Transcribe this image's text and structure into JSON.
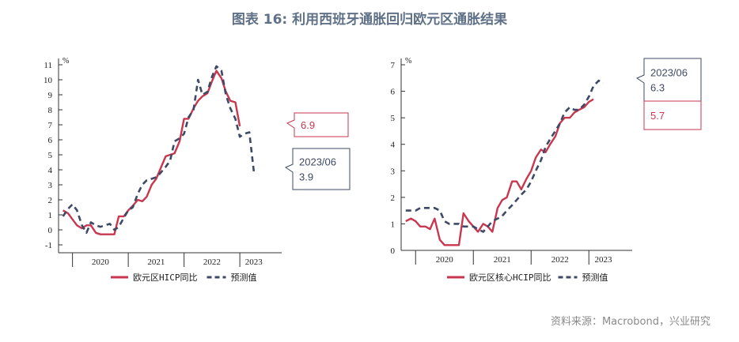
{
  "title": "图表 16: 利用西班牙通胀回归欧元区通胀结果",
  "source": "资料来源：Macrobond，兴业研究",
  "colors": {
    "actual": "#c8374f",
    "forecast": "#3e4a65",
    "title": "#5f7187"
  },
  "chart_data": [
    {
      "type": "line",
      "unit": "%",
      "ylim": [
        -1,
        11
      ],
      "yticks": [
        -1,
        0,
        1,
        2,
        3,
        4,
        5,
        6,
        7,
        8,
        9,
        10,
        11
      ],
      "x_range": [
        2019.75,
        2023.75
      ],
      "x_ticks": [
        2020.0,
        2021.0,
        2022.0,
        2023.0
      ],
      "x_labels": [
        {
          "label": "2020",
          "x": 2020.5
        },
        {
          "label": "2021",
          "x": 2021.5
        },
        {
          "label": "2022",
          "x": 2022.5
        },
        {
          "label": "2023",
          "x": 2023.25
        }
      ],
      "legend": [
        "欧元区HICP同比",
        "预测值"
      ],
      "series": [
        {
          "name": "欧元区HICP同比",
          "style": "solid",
          "points": [
            [
              2019.83,
              1.3
            ],
            [
              2019.92,
              1.1
            ],
            [
              2020.0,
              0.7
            ],
            [
              2020.08,
              0.3
            ],
            [
              2020.17,
              0.1
            ],
            [
              2020.25,
              0.3
            ],
            [
              2020.33,
              0.3
            ],
            [
              2020.42,
              -0.2
            ],
            [
              2020.5,
              -0.3
            ],
            [
              2020.58,
              -0.3
            ],
            [
              2020.67,
              -0.3
            ],
            [
              2020.75,
              -0.3
            ],
            [
              2020.83,
              0.9
            ],
            [
              2020.92,
              0.9
            ],
            [
              2021.0,
              1.3
            ],
            [
              2021.08,
              1.6
            ],
            [
              2021.17,
              2.0
            ],
            [
              2021.25,
              1.9
            ],
            [
              2021.33,
              2.2
            ],
            [
              2021.42,
              3.0
            ],
            [
              2021.5,
              3.4
            ],
            [
              2021.58,
              4.1
            ],
            [
              2021.67,
              4.9
            ],
            [
              2021.75,
              5.0
            ],
            [
              2021.83,
              5.1
            ],
            [
              2021.92,
              5.9
            ],
            [
              2022.0,
              7.4
            ],
            [
              2022.08,
              7.4
            ],
            [
              2022.17,
              8.1
            ],
            [
              2022.25,
              8.6
            ],
            [
              2022.33,
              8.9
            ],
            [
              2022.42,
              9.1
            ],
            [
              2022.5,
              9.9
            ],
            [
              2022.58,
              10.6
            ],
            [
              2022.67,
              10.1
            ],
            [
              2022.75,
              9.2
            ],
            [
              2022.83,
              8.6
            ],
            [
              2022.92,
              8.5
            ],
            [
              2023.0,
              6.9
            ]
          ]
        },
        {
          "name": "预测值",
          "style": "dashed",
          "points": [
            [
              2019.83,
              0.9
            ],
            [
              2019.92,
              1.4
            ],
            [
              2020.0,
              1.7
            ],
            [
              2020.08,
              1.3
            ],
            [
              2020.17,
              0.3
            ],
            [
              2020.25,
              -0.2
            ],
            [
              2020.33,
              0.5
            ],
            [
              2020.42,
              0.3
            ],
            [
              2020.5,
              0.2
            ],
            [
              2020.58,
              0.3
            ],
            [
              2020.67,
              0.4
            ],
            [
              2020.75,
              0.0
            ],
            [
              2020.83,
              0.2
            ],
            [
              2020.92,
              0.8
            ],
            [
              2021.0,
              1.3
            ],
            [
              2021.08,
              1.5
            ],
            [
              2021.17,
              2.4
            ],
            [
              2021.25,
              3.0
            ],
            [
              2021.33,
              3.3
            ],
            [
              2021.42,
              3.4
            ],
            [
              2021.5,
              3.5
            ],
            [
              2021.58,
              3.8
            ],
            [
              2021.67,
              4.2
            ],
            [
              2021.75,
              4.6
            ],
            [
              2021.83,
              5.9
            ],
            [
              2021.92,
              6.1
            ],
            [
              2022.0,
              6.4
            ],
            [
              2022.08,
              7.5
            ],
            [
              2022.17,
              8.0
            ],
            [
              2022.25,
              10.0
            ],
            [
              2022.33,
              9.0
            ],
            [
              2022.42,
              9.2
            ],
            [
              2022.5,
              10.2
            ],
            [
              2022.58,
              10.9
            ],
            [
              2022.67,
              10.6
            ],
            [
              2022.75,
              9.0
            ],
            [
              2022.83,
              8.1
            ],
            [
              2022.92,
              7.4
            ],
            [
              2023.0,
              6.2
            ],
            [
              2023.08,
              6.4
            ],
            [
              2023.17,
              6.5
            ],
            [
              2023.25,
              3.9
            ]
          ]
        }
      ],
      "callouts": [
        {
          "lines": [
            "6.9"
          ],
          "series": "actual"
        },
        {
          "lines": [
            "2023/06",
            "3.9"
          ],
          "series": "forecast"
        }
      ]
    },
    {
      "type": "line",
      "unit": "%",
      "ylim": [
        0,
        7
      ],
      "yticks": [
        0,
        1,
        2,
        3,
        4,
        5,
        6,
        7
      ],
      "x_range": [
        2019.75,
        2023.75
      ],
      "x_ticks": [
        2020.0,
        2021.0,
        2022.0,
        2023.0
      ],
      "x_labels": [
        {
          "label": "2020",
          "x": 2020.5
        },
        {
          "label": "2021",
          "x": 2021.5
        },
        {
          "label": "2022",
          "x": 2022.5
        },
        {
          "label": "2023",
          "x": 2023.25
        }
      ],
      "legend": [
        "欧元区核心HCIP同比",
        "预测值"
      ],
      "series": [
        {
          "name": "欧元区核心HCIP同比",
          "style": "solid",
          "points": [
            [
              2019.83,
              1.1
            ],
            [
              2019.92,
              1.2
            ],
            [
              2020.0,
              1.1
            ],
            [
              2020.08,
              0.9
            ],
            [
              2020.17,
              0.9
            ],
            [
              2020.25,
              0.8
            ],
            [
              2020.33,
              1.2
            ],
            [
              2020.42,
              0.4
            ],
            [
              2020.5,
              0.2
            ],
            [
              2020.58,
              0.2
            ],
            [
              2020.67,
              0.2
            ],
            [
              2020.75,
              0.2
            ],
            [
              2020.83,
              1.4
            ],
            [
              2020.92,
              1.1
            ],
            [
              2021.0,
              0.9
            ],
            [
              2021.08,
              0.7
            ],
            [
              2021.17,
              1.0
            ],
            [
              2021.25,
              0.9
            ],
            [
              2021.33,
              0.7
            ],
            [
              2021.42,
              1.6
            ],
            [
              2021.5,
              1.9
            ],
            [
              2021.58,
              2.0
            ],
            [
              2021.67,
              2.6
            ],
            [
              2021.75,
              2.6
            ],
            [
              2021.83,
              2.3
            ],
            [
              2021.92,
              2.7
            ],
            [
              2022.0,
              3.0
            ],
            [
              2022.08,
              3.5
            ],
            [
              2022.17,
              3.8
            ],
            [
              2022.25,
              3.7
            ],
            [
              2022.33,
              4.0
            ],
            [
              2022.42,
              4.3
            ],
            [
              2022.5,
              4.8
            ],
            [
              2022.58,
              5.0
            ],
            [
              2022.67,
              5.0
            ],
            [
              2022.75,
              5.2
            ],
            [
              2022.83,
              5.3
            ],
            [
              2022.92,
              5.4
            ],
            [
              2023.0,
              5.6
            ],
            [
              2023.08,
              5.7
            ]
          ]
        },
        {
          "name": "预测值",
          "style": "dashed",
          "points": [
            [
              2019.83,
              1.5
            ],
            [
              2019.92,
              1.5
            ],
            [
              2020.0,
              1.5
            ],
            [
              2020.08,
              1.6
            ],
            [
              2020.17,
              1.6
            ],
            [
              2020.25,
              1.6
            ],
            [
              2020.33,
              1.6
            ],
            [
              2020.42,
              1.5
            ],
            [
              2020.5,
              1.1
            ],
            [
              2020.58,
              1.0
            ],
            [
              2020.67,
              1.0
            ],
            [
              2020.75,
              1.0
            ],
            [
              2020.83,
              0.9
            ],
            [
              2020.92,
              0.9
            ],
            [
              2021.0,
              0.9
            ],
            [
              2021.08,
              0.8
            ],
            [
              2021.17,
              0.7
            ],
            [
              2021.25,
              0.9
            ],
            [
              2021.33,
              1.1
            ],
            [
              2021.42,
              1.2
            ],
            [
              2021.5,
              1.3
            ],
            [
              2021.58,
              1.5
            ],
            [
              2021.67,
              1.7
            ],
            [
              2021.75,
              1.9
            ],
            [
              2021.83,
              2.1
            ],
            [
              2021.92,
              2.3
            ],
            [
              2022.0,
              2.6
            ],
            [
              2022.08,
              3.0
            ],
            [
              2022.17,
              3.4
            ],
            [
              2022.25,
              3.9
            ],
            [
              2022.33,
              4.2
            ],
            [
              2022.42,
              4.5
            ],
            [
              2022.5,
              4.8
            ],
            [
              2022.58,
              5.2
            ],
            [
              2022.67,
              5.4
            ],
            [
              2022.75,
              5.3
            ],
            [
              2022.83,
              5.3
            ],
            [
              2022.92,
              5.5
            ],
            [
              2023.0,
              5.8
            ],
            [
              2023.08,
              6.2
            ],
            [
              2023.17,
              6.4
            ],
            [
              2023.25,
              6.3
            ]
          ]
        }
      ],
      "callouts": [
        {
          "lines": [
            "2023/06",
            "6.3"
          ],
          "series": "forecast"
        },
        {
          "lines": [
            "5.7"
          ],
          "series": "actual"
        }
      ]
    }
  ]
}
